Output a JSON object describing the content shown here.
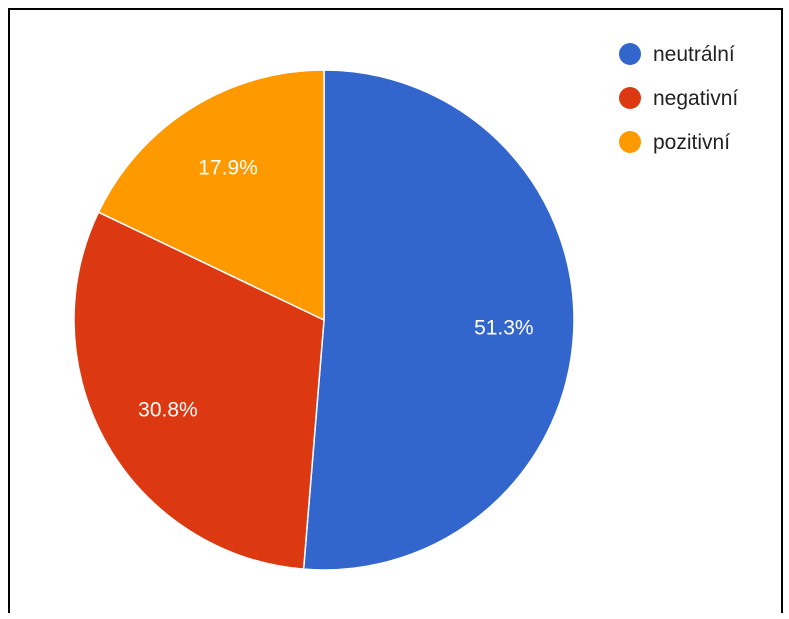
{
  "chart_data": {
    "type": "pie",
    "categories": [
      "neutrální",
      "negativní",
      "pozitivní"
    ],
    "values": [
      51.3,
      30.8,
      17.9
    ],
    "value_labels": [
      "51.3%",
      "30.8%",
      "17.9%"
    ],
    "colors": [
      "#3366cc",
      "#dc3912",
      "#ff9900"
    ],
    "legend_position": "top-right",
    "start_angle": "top",
    "direction": "clockwise"
  }
}
